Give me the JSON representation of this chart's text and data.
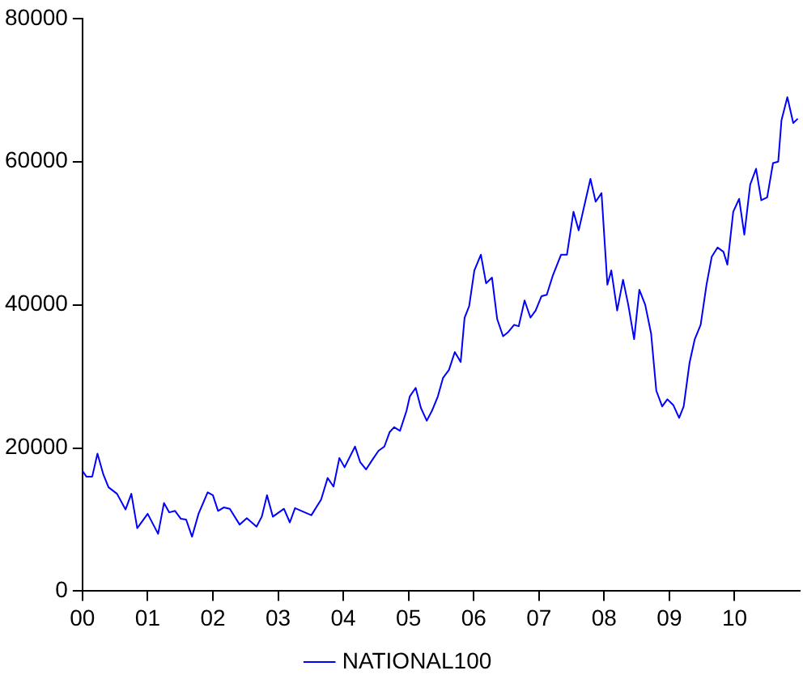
{
  "chart_data": {
    "type": "line",
    "grid": false,
    "legend": "bottom",
    "marker": "none",
    "line_style": "solid",
    "xlim": [
      2000,
      2011
    ],
    "ylim": [
      0,
      80000
    ],
    "xticks": [
      {
        "value": 2000,
        "label": "00"
      },
      {
        "value": 2001,
        "label": "01"
      },
      {
        "value": 2002,
        "label": "02"
      },
      {
        "value": 2003,
        "label": "03"
      },
      {
        "value": 2004,
        "label": "04"
      },
      {
        "value": 2005,
        "label": "05"
      },
      {
        "value": 2006,
        "label": "06"
      },
      {
        "value": 2007,
        "label": "07"
      },
      {
        "value": 2008,
        "label": "08"
      },
      {
        "value": 2009,
        "label": "09"
      },
      {
        "value": 2010,
        "label": "10"
      }
    ],
    "yticks": [
      0,
      20000,
      40000,
      60000,
      80000
    ],
    "series": [
      {
        "name": "NATIONAL100",
        "color": "#0000ff",
        "x": [
          2000.0,
          2000.06,
          2000.15,
          2000.23,
          2000.32,
          2000.4,
          2000.53,
          2000.66,
          2000.75,
          2000.84,
          2001.0,
          2001.16,
          2001.25,
          2001.33,
          2001.42,
          2001.51,
          2001.59,
          2001.68,
          2001.78,
          2001.92,
          2002.0,
          2002.08,
          2002.17,
          2002.26,
          2002.41,
          2002.52,
          2002.67,
          2002.75,
          2002.83,
          2002.92,
          2003.09,
          2003.18,
          2003.26,
          2003.51,
          2003.66,
          2003.76,
          2003.85,
          2003.94,
          2004.02,
          2004.18,
          2004.26,
          2004.35,
          2004.45,
          2004.54,
          2004.63,
          2004.71,
          2004.78,
          2004.87,
          2004.97,
          2005.02,
          2005.11,
          2005.19,
          2005.28,
          2005.36,
          2005.45,
          2005.53,
          2005.62,
          2005.71,
          2005.8,
          2005.86,
          2005.93,
          2006.01,
          2006.11,
          2006.19,
          2006.28,
          2006.36,
          2006.45,
          2006.53,
          2006.62,
          2006.69,
          2006.78,
          2006.87,
          2006.95,
          2007.04,
          2007.12,
          2007.21,
          2007.34,
          2007.43,
          2007.53,
          2007.61,
          2007.79,
          2007.87,
          2007.96,
          2008.05,
          2008.11,
          2008.2,
          2008.29,
          2008.37,
          2008.46,
          2008.54,
          2008.63,
          2008.72,
          2008.8,
          2008.89,
          2008.97,
          2009.06,
          2009.15,
          2009.22,
          2009.31,
          2009.39,
          2009.48,
          2009.57,
          2009.65,
          2009.74,
          2009.83,
          2009.89,
          2009.98,
          2010.07,
          2010.15,
          2010.24,
          2010.33,
          2010.41,
          2010.5,
          2010.59,
          2010.67,
          2010.72,
          2010.81,
          2010.9,
          2010.97
        ],
        "values": [
          16800,
          16000,
          16000,
          19200,
          16300,
          14500,
          13600,
          11400,
          13600,
          8800,
          10800,
          8000,
          12300,
          11000,
          11200,
          10100,
          10000,
          7600,
          10800,
          13800,
          13400,
          11200,
          11700,
          11500,
          9300,
          10200,
          9000,
          10400,
          13400,
          10400,
          11500,
          9600,
          11600,
          10600,
          12800,
          15800,
          14600,
          18600,
          17300,
          20200,
          18000,
          17000,
          18400,
          19600,
          20200,
          22200,
          22900,
          22400,
          25200,
          27200,
          28400,
          25600,
          23800,
          25200,
          27200,
          29800,
          30900,
          33400,
          32000,
          38200,
          39800,
          44800,
          47000,
          43000,
          43800,
          38000,
          35600,
          36200,
          37200,
          37000,
          40600,
          38200,
          39200,
          41200,
          41400,
          44000,
          47000,
          47000,
          53000,
          50400,
          57600,
          54400,
          55600,
          42800,
          44800,
          39200,
          43500,
          40000,
          35200,
          42100,
          40000,
          36000,
          28000,
          25800,
          26800,
          26000,
          24200,
          25800,
          31900,
          35200,
          37200,
          42800,
          46700,
          48000,
          47400,
          45600,
          53000,
          54800,
          49800,
          56800,
          59000,
          54600,
          55000,
          59800,
          60000,
          65800,
          69000,
          65400,
          66000
        ]
      }
    ]
  }
}
